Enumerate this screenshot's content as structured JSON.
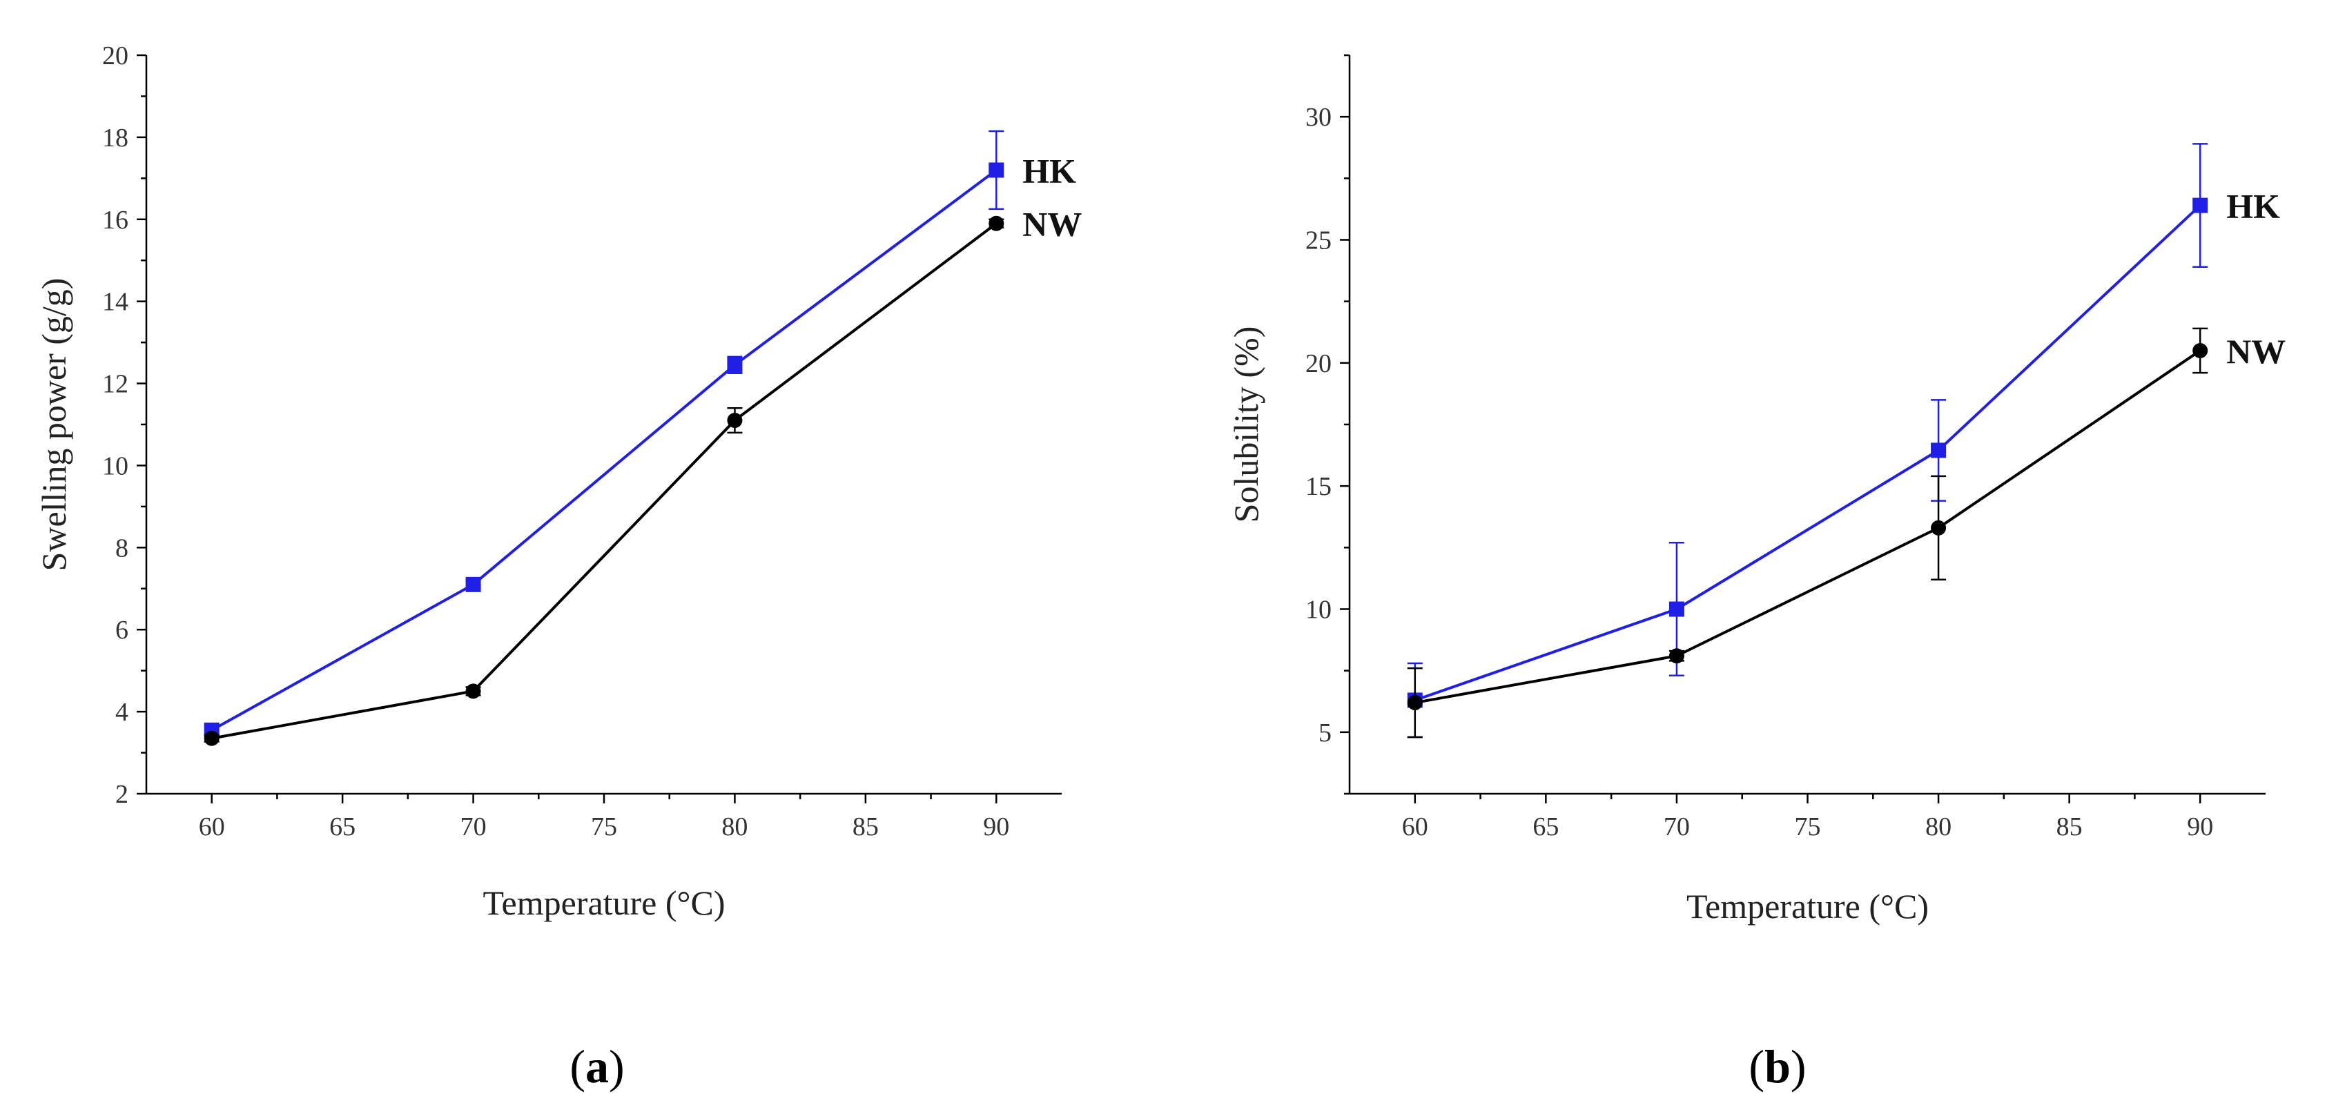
{
  "chart_data": [
    {
      "type": "line",
      "panel_label": "a",
      "xlabel": "Temperature (°C)",
      "ylabel": "Swelling power (g/g)",
      "x": [
        60,
        70,
        80,
        90
      ],
      "xlim": [
        57.5,
        92.5
      ],
      "ylim": [
        2,
        20
      ],
      "xticks": [
        60,
        65,
        70,
        75,
        80,
        85,
        90
      ],
      "yticks": [
        2,
        4,
        6,
        8,
        10,
        12,
        14,
        16,
        18,
        20
      ],
      "grid": false,
      "series": [
        {
          "name": "HK",
          "color": "#1f1fe6",
          "marker": "square",
          "values": [
            3.55,
            7.1,
            12.45,
            17.2
          ],
          "errors": [
            0.1,
            0.1,
            0.2,
            0.95
          ]
        },
        {
          "name": "NW",
          "color": "#000000",
          "marker": "circle",
          "values": [
            3.35,
            4.5,
            11.1,
            15.9
          ],
          "errors": [
            0.08,
            0.1,
            0.3,
            0.1
          ]
        }
      ]
    },
    {
      "type": "line",
      "panel_label": "b",
      "xlabel": "Temperature (°C)",
      "ylabel": "Solubility (%)",
      "x": [
        60,
        70,
        80,
        90
      ],
      "xlim": [
        57.5,
        92.5
      ],
      "ylim": [
        2.5,
        32.5
      ],
      "xticks": [
        60,
        65,
        70,
        75,
        80,
        85,
        90
      ],
      "yticks": [
        5,
        10,
        15,
        20,
        25,
        30
      ],
      "grid": false,
      "series": [
        {
          "name": "HK",
          "color": "#1f1fe6",
          "marker": "square",
          "values": [
            6.3,
            10.0,
            16.45,
            26.4
          ],
          "errors": [
            1.5,
            2.7,
            2.05,
            2.5
          ]
        },
        {
          "name": "NW",
          "color": "#000000",
          "marker": "circle",
          "values": [
            6.2,
            8.1,
            13.3,
            20.5
          ],
          "errors": [
            1.4,
            0.2,
            2.1,
            0.9
          ]
        }
      ]
    }
  ]
}
